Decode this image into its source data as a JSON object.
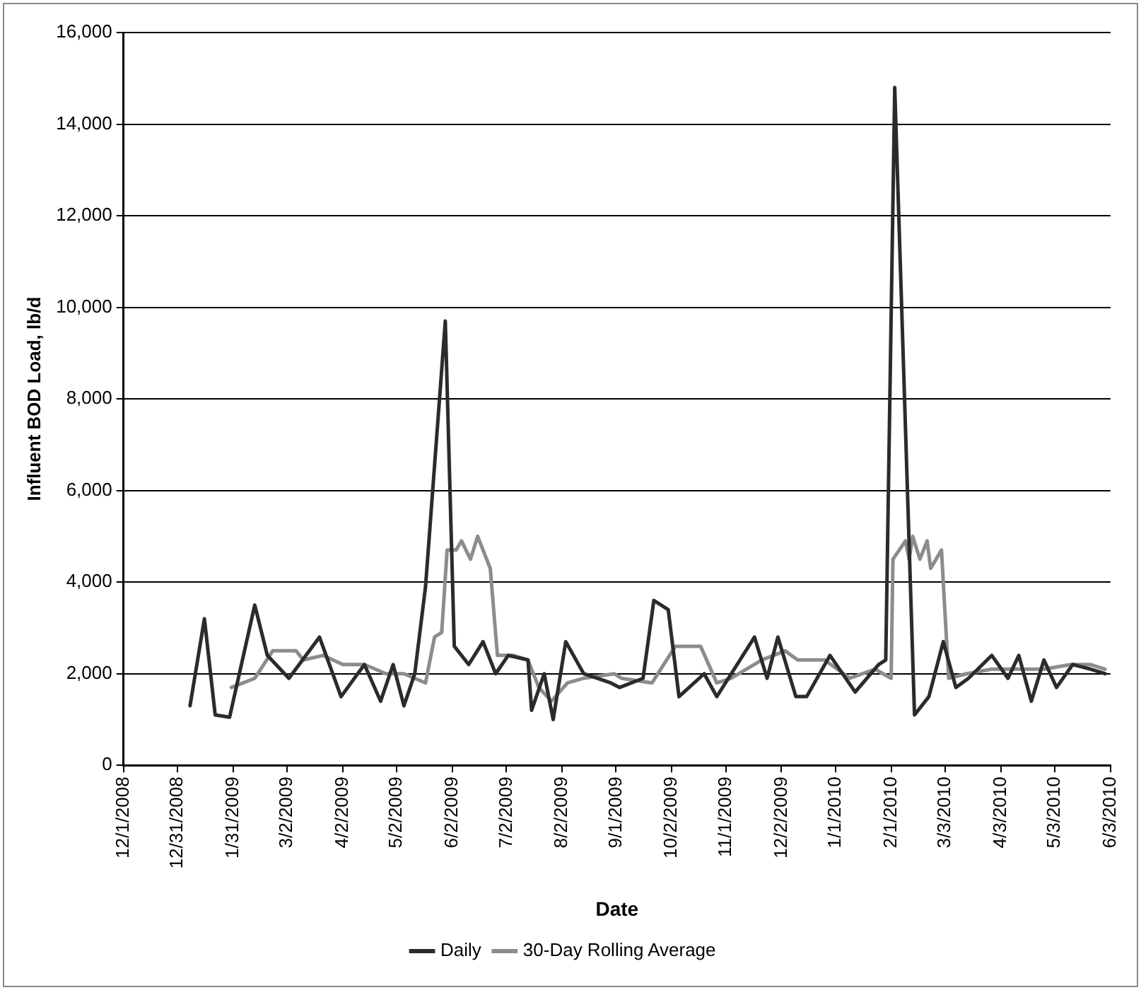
{
  "chart_data": {
    "type": "line",
    "xlabel": "Date",
    "ylabel": "Influent BOD Load, lb/d",
    "legend": "bottom",
    "grid": "y",
    "marker": "none",
    "line_style": "solid",
    "xlim": [
      "2008-12-01",
      "2010-06-03"
    ],
    "xticks": [
      {
        "value": "2008-12-01",
        "label": "12/1/2008"
      },
      {
        "value": "2008-12-31",
        "label": "12/31/2008"
      },
      {
        "value": "2009-01-31",
        "label": "1/31/2009"
      },
      {
        "value": "2009-03-02",
        "label": "3/2/2009"
      },
      {
        "value": "2009-04-02",
        "label": "4/2/2009"
      },
      {
        "value": "2009-05-02",
        "label": "5/2/2009"
      },
      {
        "value": "2009-06-02",
        "label": "6/2/2009"
      },
      {
        "value": "2009-07-02",
        "label": "7/2/2009"
      },
      {
        "value": "2009-08-02",
        "label": "8/2/2009"
      },
      {
        "value": "2009-09-01",
        "label": "9/1/2009"
      },
      {
        "value": "2009-10-02",
        "label": "10/2/2009"
      },
      {
        "value": "2009-11-01",
        "label": "11/1/2009"
      },
      {
        "value": "2009-12-02",
        "label": "12/2/2009"
      },
      {
        "value": "2010-01-01",
        "label": "1/1/2010"
      },
      {
        "value": "2010-02-01",
        "label": "2/1/2010"
      },
      {
        "value": "2010-03-03",
        "label": "3/3/2010"
      },
      {
        "value": "2010-04-03",
        "label": "4/3/2010"
      },
      {
        "value": "2010-05-03",
        "label": "5/3/2010"
      },
      {
        "value": "2010-06-03",
        "label": "6/3/2010"
      }
    ],
    "ylim": [
      0,
      16000
    ],
    "yticks": [
      0,
      {
        "value": 2000,
        "label": "2,000"
      },
      {
        "value": 4000,
        "label": "4,000"
      },
      {
        "value": 6000,
        "label": "6,000"
      },
      {
        "value": 8000,
        "label": "8,000"
      },
      {
        "value": 10000,
        "label": "10,000"
      },
      {
        "value": 12000,
        "label": "12,000"
      },
      {
        "value": 14000,
        "label": "14,000"
      },
      {
        "value": 16000,
        "label": "16,000"
      }
    ],
    "series": [
      {
        "name": "Daily",
        "color": "#2b2b2b",
        "x": [
          "2009-01-07",
          "2009-01-15",
          "2009-01-21",
          "2009-01-29",
          "2009-02-12",
          "2009-02-19",
          "2009-03-03",
          "2009-03-20",
          "2009-04-01",
          "2009-04-14",
          "2009-04-23",
          "2009-04-30",
          "2009-05-06",
          "2009-05-12",
          "2009-05-18",
          "2009-05-29",
          "2009-06-03",
          "2009-06-11",
          "2009-06-19",
          "2009-06-26",
          "2009-07-03",
          "2009-07-14",
          "2009-07-16",
          "2009-07-23",
          "2009-07-28",
          "2009-08-04",
          "2009-08-14",
          "2009-08-29",
          "2009-09-03",
          "2009-09-16",
          "2009-09-22",
          "2009-09-30",
          "2009-10-06",
          "2009-10-20",
          "2009-10-27",
          "2009-11-17",
          "2009-11-24",
          "2009-11-30",
          "2009-12-10",
          "2009-12-16",
          "2009-12-29",
          "2010-01-12",
          "2010-01-25",
          "2010-01-29",
          "2010-02-03",
          "2010-02-14",
          "2010-02-22",
          "2010-03-02",
          "2010-03-09",
          "2010-03-16",
          "2010-03-29",
          "2010-04-07",
          "2010-04-13",
          "2010-04-20",
          "2010-04-27",
          "2010-05-04",
          "2010-05-13",
          "2010-05-23",
          "2010-05-31"
        ],
        "values": [
          1300,
          3200,
          1100,
          1050,
          3500,
          2400,
          1900,
          2800,
          1500,
          2200,
          1400,
          2200,
          1300,
          2000,
          3900,
          9700,
          2600,
          2200,
          2700,
          2000,
          2400,
          2300,
          1200,
          2000,
          1000,
          2700,
          2000,
          1800,
          1700,
          1900,
          3600,
          3400,
          1500,
          2000,
          1500,
          2800,
          1900,
          2800,
          1500,
          1500,
          2400,
          1600,
          2200,
          2300,
          14800,
          1100,
          1500,
          2700,
          1700,
          1900,
          2400,
          1900,
          2400,
          1400,
          2300,
          1700,
          2200,
          2100,
          2000
        ]
      },
      {
        "name": "30-Day Rolling Average",
        "color": "#8c8c8c",
        "x": [
          "2009-01-30",
          "2009-02-12",
          "2009-02-22",
          "2009-03-07",
          "2009-03-11",
          "2009-03-22",
          "2009-04-02",
          "2009-04-14",
          "2009-04-26",
          "2009-05-06",
          "2009-05-18",
          "2009-05-23",
          "2009-05-27",
          "2009-05-30",
          "2009-06-04",
          "2009-06-07",
          "2009-06-12",
          "2009-06-16",
          "2009-06-23",
          "2009-06-27",
          "2009-07-06",
          "2009-07-14",
          "2009-07-20",
          "2009-07-27",
          "2009-08-05",
          "2009-08-14",
          "2009-08-31",
          "2009-09-04",
          "2009-09-21",
          "2009-10-04",
          "2009-10-18",
          "2009-10-27",
          "2009-11-04",
          "2009-11-21",
          "2009-12-04",
          "2009-12-11",
          "2009-12-26",
          "2010-01-09",
          "2010-01-23",
          "2010-02-01",
          "2010-02-02",
          "2010-02-09",
          "2010-02-11",
          "2010-02-13",
          "2010-02-17",
          "2010-02-21",
          "2010-02-23",
          "2010-03-01",
          "2010-03-05",
          "2010-03-15",
          "2010-03-29",
          "2010-04-13",
          "2010-04-27",
          "2010-05-12",
          "2010-05-23",
          "2010-05-31"
        ],
        "values": [
          1700,
          1900,
          2500,
          2500,
          2300,
          2400,
          2200,
          2200,
          2000,
          2000,
          1800,
          2800,
          2900,
          4700,
          4700,
          4900,
          4500,
          5000,
          4300,
          2400,
          2400,
          2300,
          1700,
          1400,
          1800,
          1900,
          2000,
          1900,
          1800,
          2600,
          2600,
          1800,
          1900,
          2300,
          2500,
          2300,
          2300,
          1900,
          2100,
          1900,
          4500,
          4900,
          4500,
          5000,
          4500,
          4900,
          4300,
          4700,
          1900,
          2000,
          2100,
          2100,
          2100,
          2200,
          2200,
          2100
        ]
      }
    ]
  }
}
